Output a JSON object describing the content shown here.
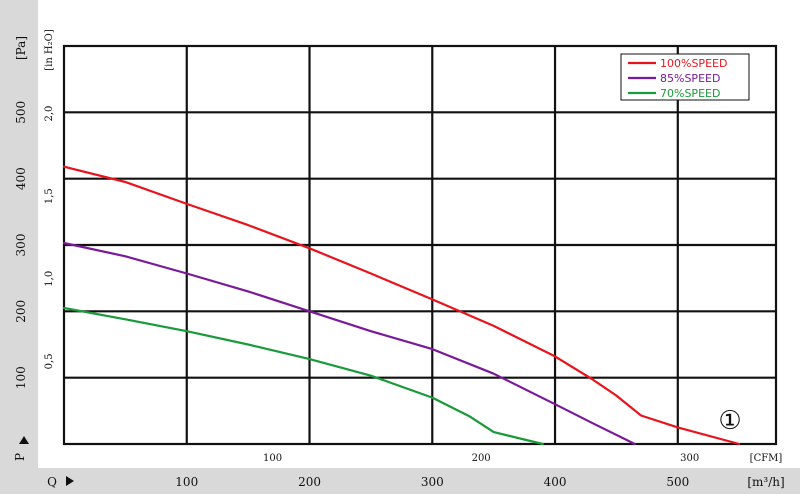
{
  "chart_data": {
    "type": "line",
    "title": "",
    "x_axis": {
      "unit_label": "[m³/h]",
      "label": "Q",
      "range": [
        0,
        580
      ],
      "ticks": [
        100,
        200,
        300,
        400,
        500
      ],
      "tick_labels": [
        "100",
        "200",
        "300",
        "400",
        "500"
      ]
    },
    "x2_axis": {
      "unit_label": "[CFM]",
      "ticks": [
        100,
        200,
        300
      ],
      "tick_labels": [
        "100",
        "200",
        "300"
      ]
    },
    "y_axis": {
      "unit_label": "[Pa]",
      "label": "P",
      "range": [
        0,
        600
      ],
      "ticks": [
        100,
        200,
        300,
        400,
        500
      ],
      "tick_labels": [
        "100",
        "200",
        "300",
        "400",
        "500"
      ]
    },
    "y2_axis": {
      "unit_label": "[in H₂O]",
      "ticks": [
        0.5,
        1.0,
        1.5,
        2.0
      ],
      "tick_labels": [
        "0,5",
        "1,0",
        "1,5",
        "2,0"
      ]
    },
    "series": [
      {
        "name": "100%SPEED",
        "color": "#e8141d",
        "points": [
          [
            0,
            418
          ],
          [
            50,
            395
          ],
          [
            100,
            362
          ],
          [
            150,
            330
          ],
          [
            200,
            295
          ],
          [
            250,
            257
          ],
          [
            300,
            218
          ],
          [
            350,
            178
          ],
          [
            400,
            132
          ],
          [
            430,
            98
          ],
          [
            450,
            73
          ],
          [
            470,
            43
          ],
          [
            500,
            25
          ],
          [
            550,
            0
          ]
        ]
      },
      {
        "name": "85%SPEED",
        "color": "#7a1a9a",
        "points": [
          [
            0,
            303
          ],
          [
            50,
            283
          ],
          [
            100,
            257
          ],
          [
            150,
            230
          ],
          [
            200,
            200
          ],
          [
            250,
            170
          ],
          [
            300,
            143
          ],
          [
            350,
            106
          ],
          [
            400,
            60
          ],
          [
            430,
            32
          ],
          [
            465,
            0
          ]
        ]
      },
      {
        "name": "70%SPEED",
        "color": "#1a9a3a",
        "points": [
          [
            0,
            205
          ],
          [
            50,
            188
          ],
          [
            100,
            170
          ],
          [
            150,
            150
          ],
          [
            200,
            128
          ],
          [
            250,
            103
          ],
          [
            300,
            70
          ],
          [
            330,
            42
          ],
          [
            350,
            18
          ],
          [
            390,
            0
          ]
        ]
      }
    ],
    "legend": {
      "position": "top-right"
    },
    "grid": true,
    "annotation": "①"
  }
}
